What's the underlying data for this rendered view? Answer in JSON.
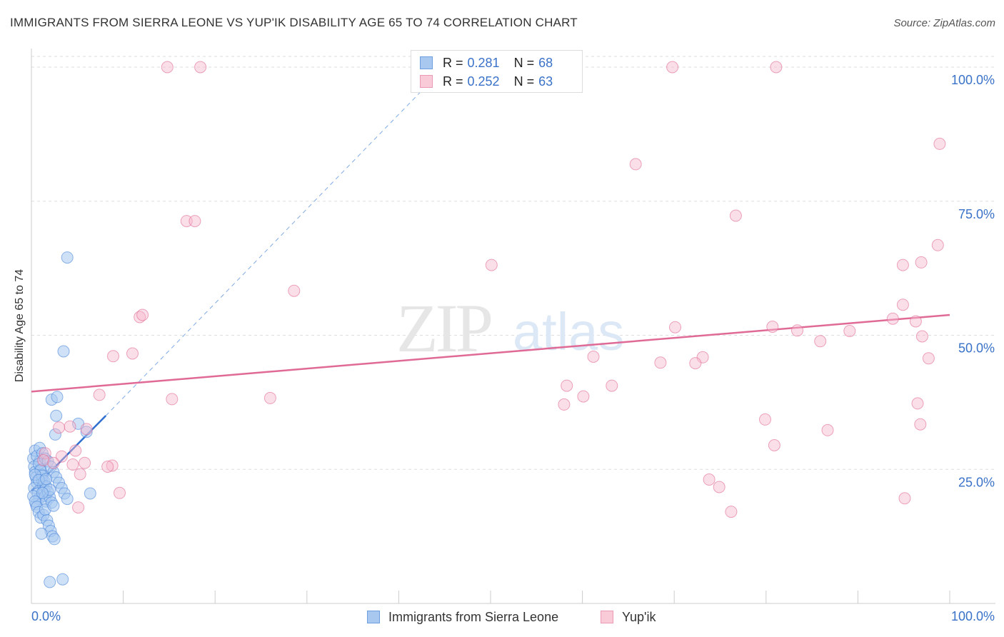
{
  "title": "IMMIGRANTS FROM SIERRA LEONE VS YUP'IK DISABILITY AGE 65 TO 74 CORRELATION CHART",
  "source": "Source: ZipAtlas.com",
  "watermark": {
    "zip": "ZIP",
    "atlas": "atlas"
  },
  "colors": {
    "blue": "#4a86d8",
    "blue_fill": "#a8c8f0",
    "pink": "#e06a96",
    "pink_fill": "#f6b8cc",
    "grid": "#dddddd",
    "axis_label": "#3a72c8"
  },
  "legend": {
    "series1": {
      "r_label": "R =",
      "r_value": "0.281",
      "n_label": "N =",
      "n_value": "68"
    },
    "series2": {
      "r_label": "R =",
      "r_value": "0.252",
      "n_label": "N =",
      "n_value": "63"
    }
  },
  "bottom_legend": {
    "series1": "Immigrants from Sierra Leone",
    "series2": "Yup'ik"
  },
  "chart_data": {
    "type": "scatter",
    "title": "IMMIGRANTS FROM SIERRA LEONE VS YUP'IK DISABILITY AGE 65 TO 74 CORRELATION CHART",
    "xlabel": "",
    "ylabel": "Disability Age 65 to 74",
    "xlim": [
      0,
      100
    ],
    "ylim": [
      0,
      102
    ],
    "x_tick_labels": [
      "0.0%",
      "100.0%"
    ],
    "y_ticks": [
      25,
      50,
      75,
      100
    ],
    "y_tick_labels": [
      "25.0%",
      "50.0%",
      "75.0%",
      "100.0%"
    ],
    "grid": true,
    "series": [
      {
        "name": "Immigrants from Sierra Leone",
        "R": 0.281,
        "N": 68,
        "trend": {
          "x1": 0,
          "y1": 21.0,
          "x2": 8.1,
          "y2": 35.0,
          "dash_to": {
            "x": 45,
            "y": 100
          }
        },
        "points": [
          [
            0.2,
            27.0
          ],
          [
            0.3,
            25.5
          ],
          [
            0.4,
            24.5
          ],
          [
            0.5,
            23.5
          ],
          [
            0.6,
            22.5
          ],
          [
            0.3,
            21.5
          ],
          [
            0.7,
            20.5
          ],
          [
            0.8,
            19.5
          ],
          [
            0.5,
            18.5
          ],
          [
            0.9,
            26.5
          ],
          [
            1.0,
            25.0
          ],
          [
            1.1,
            24.0
          ],
          [
            1.2,
            23.0
          ],
          [
            1.3,
            22.0
          ],
          [
            1.4,
            21.0
          ],
          [
            1.5,
            20.0
          ],
          [
            1.6,
            19.0
          ],
          [
            0.4,
            28.5
          ],
          [
            0.6,
            27.5
          ],
          [
            0.8,
            26.0
          ],
          [
            1.0,
            24.8
          ],
          [
            1.2,
            23.8
          ],
          [
            1.4,
            22.8
          ],
          [
            1.6,
            21.8
          ],
          [
            1.8,
            20.8
          ],
          [
            2.0,
            19.8
          ],
          [
            2.2,
            18.8
          ],
          [
            0.2,
            20.0
          ],
          [
            0.4,
            19.0
          ],
          [
            0.6,
            18.0
          ],
          [
            0.8,
            17.0
          ],
          [
            1.0,
            16.0
          ],
          [
            1.3,
            16.5
          ],
          [
            1.5,
            17.5
          ],
          [
            1.7,
            15.5
          ],
          [
            1.9,
            14.5
          ],
          [
            2.1,
            13.5
          ],
          [
            2.3,
            12.5
          ],
          [
            1.1,
            13.0
          ],
          [
            2.5,
            12.0
          ],
          [
            0.9,
            29.0
          ],
          [
            1.2,
            28.0
          ],
          [
            1.5,
            27.0
          ],
          [
            1.8,
            26.5
          ],
          [
            2.1,
            25.5
          ],
          [
            2.4,
            24.5
          ],
          [
            2.7,
            23.5
          ],
          [
            3.0,
            22.5
          ],
          [
            3.3,
            21.5
          ],
          [
            3.6,
            20.5
          ],
          [
            3.9,
            19.5
          ],
          [
            2.6,
            31.5
          ],
          [
            2.7,
            35.0
          ],
          [
            2.2,
            38.0
          ],
          [
            2.8,
            38.5
          ],
          [
            3.5,
            47.0
          ],
          [
            3.9,
            64.5
          ],
          [
            5.1,
            33.5
          ],
          [
            6.0,
            32.0
          ],
          [
            6.4,
            20.5
          ],
          [
            2.0,
            4.0
          ],
          [
            3.4,
            4.5
          ],
          [
            0.4,
            24.0
          ],
          [
            0.8,
            23.0
          ],
          [
            1.6,
            23.2
          ],
          [
            2.0,
            21.2
          ],
          [
            2.4,
            18.2
          ],
          [
            1.2,
            20.6
          ]
        ]
      },
      {
        "name": "Yup'ik",
        "R": 0.252,
        "N": 63,
        "trend": {
          "x1": 0,
          "y1": 39.5,
          "x2": 100,
          "y2": 53.8
        },
        "points": [
          [
            14.8,
            100.0
          ],
          [
            18.4,
            100.0
          ],
          [
            69.8,
            100.0
          ],
          [
            81.1,
            100.0
          ],
          [
            98.9,
            85.7
          ],
          [
            65.8,
            81.9
          ],
          [
            16.9,
            71.3
          ],
          [
            17.8,
            71.3
          ],
          [
            76.7,
            72.3
          ],
          [
            98.7,
            66.8
          ],
          [
            50.1,
            63.1
          ],
          [
            94.9,
            63.1
          ],
          [
            96.9,
            63.6
          ],
          [
            28.6,
            58.3
          ],
          [
            11.8,
            53.4
          ],
          [
            12.1,
            53.8
          ],
          [
            94.9,
            55.7
          ],
          [
            93.8,
            53.1
          ],
          [
            96.3,
            52.6
          ],
          [
            70.1,
            51.5
          ],
          [
            80.7,
            51.6
          ],
          [
            83.4,
            50.9
          ],
          [
            89.1,
            50.8
          ],
          [
            97.0,
            49.8
          ],
          [
            85.9,
            48.9
          ],
          [
            11.0,
            46.6
          ],
          [
            8.9,
            46.1
          ],
          [
            61.2,
            46.0
          ],
          [
            73.1,
            45.9
          ],
          [
            97.7,
            45.7
          ],
          [
            68.5,
            44.9
          ],
          [
            72.3,
            44.8
          ],
          [
            58.3,
            40.6
          ],
          [
            63.2,
            40.6
          ],
          [
            60.1,
            38.6
          ],
          [
            7.4,
            38.9
          ],
          [
            15.3,
            38.1
          ],
          [
            26.0,
            38.3
          ],
          [
            58.0,
            37.1
          ],
          [
            96.5,
            37.3
          ],
          [
            79.9,
            34.3
          ],
          [
            96.8,
            33.4
          ],
          [
            4.2,
            33.0
          ],
          [
            6.0,
            32.5
          ],
          [
            86.7,
            32.3
          ],
          [
            3.0,
            32.8
          ],
          [
            80.9,
            29.5
          ],
          [
            4.8,
            28.5
          ],
          [
            1.5,
            28.0
          ],
          [
            3.3,
            27.4
          ],
          [
            5.8,
            26.2
          ],
          [
            8.8,
            25.7
          ],
          [
            4.5,
            25.9
          ],
          [
            5.3,
            24.1
          ],
          [
            73.8,
            23.1
          ],
          [
            74.9,
            21.7
          ],
          [
            9.6,
            20.6
          ],
          [
            95.1,
            19.6
          ],
          [
            76.2,
            17.1
          ],
          [
            5.1,
            17.9
          ],
          [
            1.3,
            26.7
          ],
          [
            2.4,
            26.2
          ],
          [
            8.3,
            25.5
          ]
        ]
      }
    ]
  }
}
